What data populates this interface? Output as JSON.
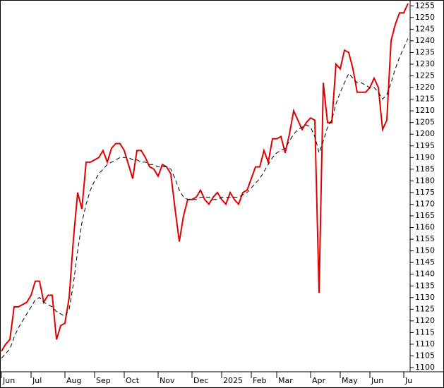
{
  "chart_data": {
    "type": "line",
    "categories": [
      "Jun",
      null,
      null,
      null,
      null,
      null,
      null,
      "Jul",
      null,
      null,
      null,
      null,
      null,
      null,
      null,
      "Aug",
      null,
      null,
      null,
      null,
      null,
      null,
      "Sep",
      null,
      null,
      null,
      null,
      null,
      null,
      "Oct",
      null,
      null,
      null,
      null,
      null,
      null,
      null,
      "Nov",
      null,
      null,
      null,
      null,
      null,
      null,
      null,
      "Dec",
      null,
      null,
      null,
      null,
      null,
      null,
      "2025",
      null,
      null,
      null,
      null,
      null,
      null,
      "Feb",
      null,
      null,
      null,
      null,
      null,
      "Mar",
      null,
      null,
      null,
      null,
      null,
      null,
      null,
      "Apr",
      null,
      null,
      null,
      null,
      null,
      null,
      "May",
      null,
      null,
      null,
      null,
      null,
      null,
      "Jun",
      null,
      null,
      null,
      null,
      null,
      null,
      null,
      "Ju",
      null
    ],
    "series": [
      {
        "color": "#e00000",
        "values": [
          1107,
          1110,
          1112,
          1126,
          1126,
          1127,
          1128,
          1131,
          1137,
          1137,
          1128,
          1131,
          1131,
          1112,
          1118,
          1119,
          1130,
          1155,
          1175,
          1168,
          1188,
          1188,
          1189,
          1190,
          1193,
          1188,
          1194,
          1196,
          1196,
          1193,
          1187,
          1181,
          1193,
          1193,
          1190,
          1186,
          1185,
          1182,
          1187,
          1186,
          1183,
          1168,
          1154,
          1165,
          1172,
          1172,
          1173,
          1176,
          1172,
          1170,
          1173,
          1175,
          1172,
          1170,
          1175,
          1172,
          1170,
          1175,
          1176,
          1181,
          1186,
          1186,
          1193,
          1188,
          1198,
          1198,
          1199,
          1192,
          1200,
          1210,
          1206,
          1202,
          1205,
          1207,
          1206,
          1132,
          1222,
          1205,
          1205,
          1230,
          1228,
          1236,
          1235,
          1228,
          1218,
          1218,
          1218,
          1220,
          1224,
          1220,
          1202,
          1206,
          1240,
          1247,
          1252,
          1252,
          1256
        ]
      },
      {
        "color": "#000000",
        "dashed": true,
        "values": [
          1104,
          1106,
          1108,
          1113,
          1117,
          1120,
          1123,
          1126,
          1129,
          1130,
          1128,
          1127,
          1126,
          1124,
          1123,
          1122,
          1125,
          1136,
          1150,
          1162,
          1170,
          1176,
          1180,
          1183,
          1185,
          1187,
          1188,
          1189,
          1190,
          1190,
          1190,
          1189,
          1189,
          1188,
          1188,
          1187,
          1187,
          1186,
          1186,
          1186,
          1185,
          1181,
          1176,
          1173,
          1172,
          1172,
          1172,
          1173,
          1173,
          1173,
          1172,
          1172,
          1173,
          1173,
          1173,
          1173,
          1173,
          1174,
          1175,
          1177,
          1179,
          1181,
          1184,
          1187,
          1190,
          1192,
          1193,
          1194,
          1197,
          1200,
          1202,
          1203,
          1204,
          1203,
          1199,
          1192,
          1197,
          1203,
          1206,
          1213,
          1218,
          1222,
          1226,
          1224,
          1222,
          1222,
          1221,
          1220,
          1220,
          1218,
          1215,
          1217,
          1222,
          1228,
          1233,
          1237,
          1241
        ]
      }
    ],
    "ylim": [
      1098.5,
      1257.5
    ],
    "yticks": [
      1100,
      1105,
      1110,
      1115,
      1120,
      1125,
      1130,
      1135,
      1140,
      1145,
      1150,
      1155,
      1160,
      1165,
      1170,
      1175,
      1180,
      1185,
      1190,
      1195,
      1200,
      1205,
      1210,
      1215,
      1220,
      1225,
      1230,
      1235,
      1240,
      1245,
      1250,
      1255
    ],
    "grid": false
  }
}
